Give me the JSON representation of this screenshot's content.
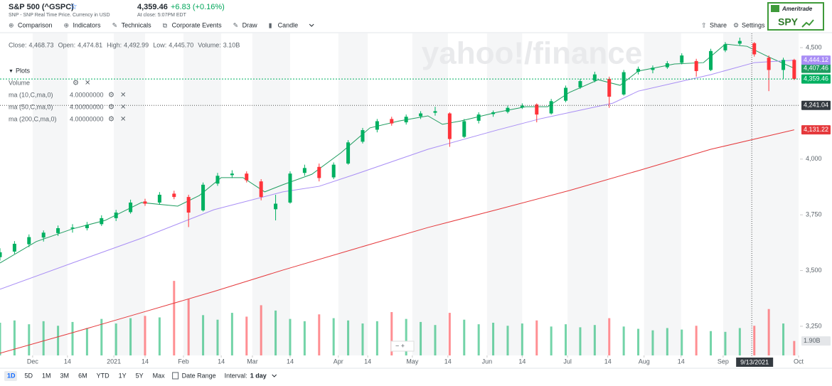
{
  "header": {
    "symbol": "S&P 500 (^GSPC)",
    "subtitle": "SNP - SNP Real Time Price. Currency in USD",
    "price": "4,359.46",
    "change": "+6.83 (+0.16%)",
    "time": "At close: 5:07PM EDT"
  },
  "ad": {
    "brand": "Ameritrade",
    "ticker": "SPY"
  },
  "toolbar": [
    "Comparison",
    "Indicators",
    "Technicals",
    "Corporate Events",
    "Draw",
    "Candle"
  ],
  "toolbar_right": [
    "Share",
    "Settings"
  ],
  "quote": [
    {
      "label": "Close:",
      "value": "4,468.73"
    },
    {
      "label": "Open:",
      "value": "4,474.81"
    },
    {
      "label": "High:",
      "value": "4,492.99"
    },
    {
      "label": "Low:",
      "value": "4,445.70"
    },
    {
      "label": "Volume:",
      "value": "3.10B"
    }
  ],
  "plots": {
    "title": "Plots",
    "items": [
      {
        "name": "Volume"
      },
      {
        "name": "ma (10,C,ma,0)",
        "param": "4.00000000"
      },
      {
        "name": "ma (50,C,ma,0)",
        "param": "4.00000000"
      },
      {
        "name": "ma (200,C,ma,0)",
        "param": "4.00000000"
      }
    ]
  },
  "watermark": "yahoo!/finance",
  "chart_data": {
    "type": "candlestick",
    "xlim": [
      0,
      220.6
    ],
    "xticks": [
      {
        "value": 9,
        "label": "Dec"
      },
      {
        "value": 18.6,
        "label": "14"
      },
      {
        "value": 31.4,
        "label": "2021"
      },
      {
        "value": 40,
        "label": "14"
      },
      {
        "value": 50.6,
        "label": "Feb"
      },
      {
        "value": 61,
        "label": "14"
      },
      {
        "value": 69.6,
        "label": "Mar"
      },
      {
        "value": 80,
        "label": "14"
      },
      {
        "value": 93.3,
        "label": "Apr"
      },
      {
        "value": 101.4,
        "label": "14"
      },
      {
        "value": 113.7,
        "label": "May"
      },
      {
        "value": 123.5,
        "label": "14"
      },
      {
        "value": 134.3,
        "label": "Jun"
      },
      {
        "value": 144,
        "label": "14"
      },
      {
        "value": 156.5,
        "label": "Jul"
      },
      {
        "value": 167.6,
        "label": "14"
      },
      {
        "value": 177.6,
        "label": "Aug"
      },
      {
        "value": 187.8,
        "label": "14"
      },
      {
        "value": 199.4,
        "label": "Sep"
      },
      {
        "value": 220.2,
        "label": "Oct"
      }
    ],
    "ylim": [
      3119,
      4564
    ],
    "yticks": [
      {
        "value": 3250,
        "label": "3,250"
      },
      {
        "value": 3500,
        "label": "3,500"
      },
      {
        "value": 3750,
        "label": "3,750"
      },
      {
        "value": 4000,
        "label": "4,000"
      },
      {
        "value": 4500,
        "label": "4,500"
      }
    ],
    "up_color": "#00b061",
    "down_color": "#ff333a",
    "candles": {
      "x": [
        0,
        4,
        8,
        12,
        16,
        20,
        24,
        28,
        32,
        36,
        40,
        44,
        48,
        52,
        56,
        60,
        64,
        68,
        72,
        76,
        80,
        84,
        88,
        92,
        96,
        100,
        104,
        108,
        112,
        116,
        120,
        124,
        128,
        132,
        136,
        140,
        144,
        148,
        152,
        156,
        160,
        164,
        168,
        172,
        176,
        180,
        184,
        188,
        192,
        196,
        200,
        204,
        208,
        212,
        216,
        219
      ],
      "open": [
        3560,
        3585,
        3618,
        3648,
        3668,
        3688,
        3690,
        3708,
        3735,
        3762,
        3810,
        3805,
        3845,
        3830,
        3770,
        3890,
        3928,
        3935,
        3900,
        3775,
        3805,
        3938,
        3965,
        3918,
        3980,
        4078,
        4132,
        4180,
        4165,
        4192,
        4208,
        4205,
        4100,
        4172,
        4202,
        4212,
        4232,
        4245,
        4205,
        4262,
        4322,
        4352,
        4360,
        4290,
        4392,
        4400,
        4412,
        4432,
        4440,
        4400,
        4488,
        4518,
        4520,
        4455,
        4400,
        4445
      ],
      "high": [
        3600,
        3632,
        3662,
        3680,
        3702,
        3708,
        3718,
        3748,
        3772,
        3818,
        3822,
        3852,
        3858,
        3840,
        3895,
        3938,
        3950,
        3945,
        3910,
        3840,
        3945,
        3975,
        3980,
        3985,
        4085,
        4140,
        4180,
        4190,
        4200,
        4215,
        4235,
        4210,
        4180,
        4210,
        4218,
        4240,
        4250,
        4250,
        4270,
        4330,
        4360,
        4392,
        4370,
        4400,
        4415,
        4420,
        4440,
        4475,
        4450,
        4495,
        4525,
        4545,
        4525,
        4465,
        4455,
        4450
      ],
      "low": [
        3545,
        3575,
        3605,
        3630,
        3655,
        3670,
        3680,
        3700,
        3722,
        3755,
        3790,
        3795,
        3820,
        3695,
        3765,
        3880,
        3915,
        3895,
        3815,
        3725,
        3800,
        3925,
        3900,
        3910,
        3975,
        4070,
        4120,
        4150,
        4155,
        4180,
        4195,
        4055,
        4095,
        4160,
        4190,
        4205,
        4225,
        4165,
        4200,
        4255,
        4315,
        4345,
        4230,
        4285,
        4380,
        4385,
        4405,
        4425,
        4370,
        4395,
        4480,
        4510,
        4460,
        4305,
        4360,
        4355
      ],
      "close": [
        3582,
        3620,
        3650,
        3670,
        3690,
        3693,
        3705,
        3735,
        3760,
        3805,
        3800,
        3840,
        3830,
        3760,
        3885,
        3925,
        3935,
        3905,
        3830,
        3800,
        3935,
        3960,
        3915,
        3975,
        4075,
        4130,
        4170,
        4160,
        4190,
        4205,
        4215,
        4090,
        4170,
        4200,
        4210,
        4230,
        4240,
        4200,
        4260,
        4320,
        4350,
        4380,
        4280,
        4390,
        4405,
        4410,
        4430,
        4465,
        4395,
        4485,
        4515,
        4530,
        4470,
        4400,
        4445,
        4359.46
      ]
    },
    "volume": {
      "ylim": [
        0,
        10
      ],
      "values": [
        4.3,
        4.6,
        4.1,
        4.5,
        3.9,
        4.4,
        3.6,
        4.8,
        4.2,
        4.9,
        5.2,
        5.0,
        9.8,
        7.4,
        5.3,
        4.7,
        5.6,
        5.1,
        6.6,
        5.9,
        4.8,
        4.5,
        5.4,
        4.9,
        4.6,
        4.2,
        4.5,
        5.7,
        4.8,
        4.4,
        4.0,
        5.6,
        4.7,
        4.1,
        4.3,
        3.9,
        4.2,
        4.6,
        3.8,
        4.1,
        3.7,
        4.0,
        4.9,
        3.8,
        3.5,
        3.3,
        3.6,
        3.4,
        3.9,
        3.2,
        3.1,
        3.6,
        3.9,
        6.1,
        4.2,
        1.9
      ],
      "last_label": "1.90B"
    },
    "series": [
      {
        "name": "ma (10,C,ma,0)",
        "color": "#1f9d60",
        "x": [
          0,
          10,
          20,
          29,
          39,
          49,
          55,
          61,
          67,
          73,
          78,
          86,
          94,
          102,
          110,
          118,
          122,
          127,
          137,
          145,
          151,
          157,
          165,
          171,
          176,
          186,
          194,
          200,
          206,
          212,
          219
        ],
        "values": [
          3534,
          3630,
          3687,
          3725,
          3805,
          3789,
          3837,
          3917,
          3917,
          3853,
          3885,
          3932,
          4028,
          4140,
          4171,
          4194,
          4156,
          4171,
          4210,
          4235,
          4235,
          4299,
          4356,
          4331,
          4395,
          4427,
          4433,
          4516,
          4506,
          4458,
          4407.46
        ],
        "last_label": "4,407.46"
      },
      {
        "name": "ma (50,C,ma,0)",
        "color": "#a98ef5",
        "x": [
          0,
          20,
          39,
          59,
          78,
          88,
          98,
          118,
          137,
          149,
          169,
          176,
          196,
          208,
          219
        ],
        "values": [
          3416,
          3534,
          3645,
          3773,
          3853,
          3878,
          3932,
          4044,
          4130,
          4181,
          4251,
          4305,
          4379,
          4433,
          4444.12
        ],
        "last_label": "4,444.12"
      },
      {
        "name": "ma (200,C,ma,0)",
        "color": "#e5393c",
        "x": [
          0,
          20,
          39,
          59,
          78,
          98,
          118,
          137,
          157,
          176,
          196,
          219
        ],
        "values": [
          3129,
          3221,
          3311,
          3406,
          3502,
          3598,
          3693,
          3773,
          3859,
          3948,
          4044,
          4131.22
        ],
        "last_label": "4,131.22"
      }
    ],
    "current": {
      "value": 4359.46,
      "label": "4,359.46"
    },
    "crosshair": {
      "x": 207.3,
      "x_label": "9/13/2021",
      "y": 4241.04,
      "y_label": "4,241.04"
    }
  },
  "range": {
    "buttons": [
      "1D",
      "5D",
      "1M",
      "3M",
      "6M",
      "YTD",
      "1Y",
      "5Y",
      "Max"
    ],
    "date_range": "Date Range",
    "interval_label": "Interval:",
    "interval": "1 day"
  }
}
